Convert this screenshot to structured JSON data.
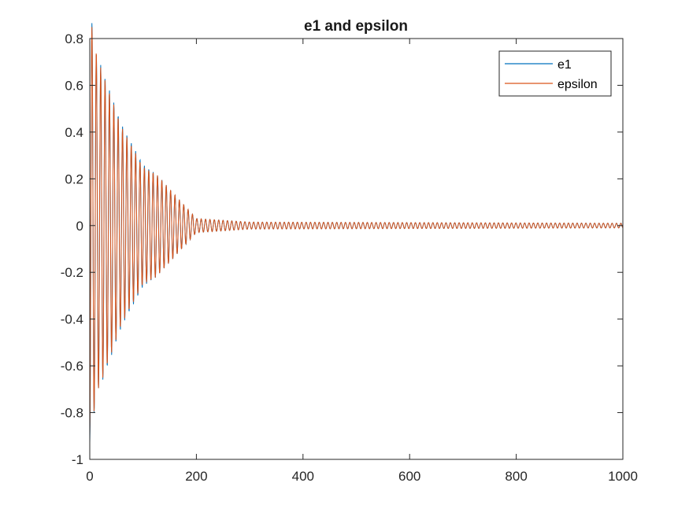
{
  "chart_data": {
    "type": "line",
    "title": "e1 and epsilon",
    "xlabel": "",
    "ylabel": "",
    "xlim": [
      0,
      1000
    ],
    "ylim": [
      -1,
      0.8
    ],
    "x_ticks": [
      0,
      200,
      400,
      600,
      800,
      1000
    ],
    "x_tick_labels": [
      "0",
      "200",
      "400",
      "600",
      "800",
      "1000"
    ],
    "y_ticks": [
      -1,
      -0.8,
      -0.6,
      -0.4,
      -0.2,
      0,
      0.2,
      0.4,
      0.6,
      0.8
    ],
    "y_tick_labels": [
      "-1",
      "-0.8",
      "-0.6",
      "-0.4",
      "-0.2",
      "0",
      "0.2",
      "0.4",
      "0.6",
      "0.8"
    ],
    "grid": false,
    "legend_position": "top-right",
    "series": [
      {
        "name": "e1",
        "color": "#0072BD",
        "description_points": [
          {
            "x": 0,
            "y": -0.93
          },
          {
            "x": 15,
            "y": 0.7
          },
          {
            "x": 20,
            "y": -0.69
          },
          {
            "x": 60,
            "y": 0.43
          },
          {
            "x": 100,
            "y": -0.26
          },
          {
            "x": 125,
            "y": 0.22
          },
          {
            "x": 200,
            "y": -0.03
          },
          {
            "x": 300,
            "y": 0.015
          },
          {
            "x": 1000,
            "y": 0.01
          }
        ]
      },
      {
        "name": "epsilon",
        "color": "#D95319",
        "description_points": [
          {
            "x": 0,
            "y": -0.9
          },
          {
            "x": 15,
            "y": 0.71
          },
          {
            "x": 20,
            "y": -0.68
          },
          {
            "x": 60,
            "y": 0.42
          },
          {
            "x": 100,
            "y": -0.25
          },
          {
            "x": 125,
            "y": 0.22
          },
          {
            "x": 200,
            "y": -0.03
          },
          {
            "x": 300,
            "y": 0.015
          },
          {
            "x": 1000,
            "y": 0.01
          }
        ]
      }
    ]
  }
}
